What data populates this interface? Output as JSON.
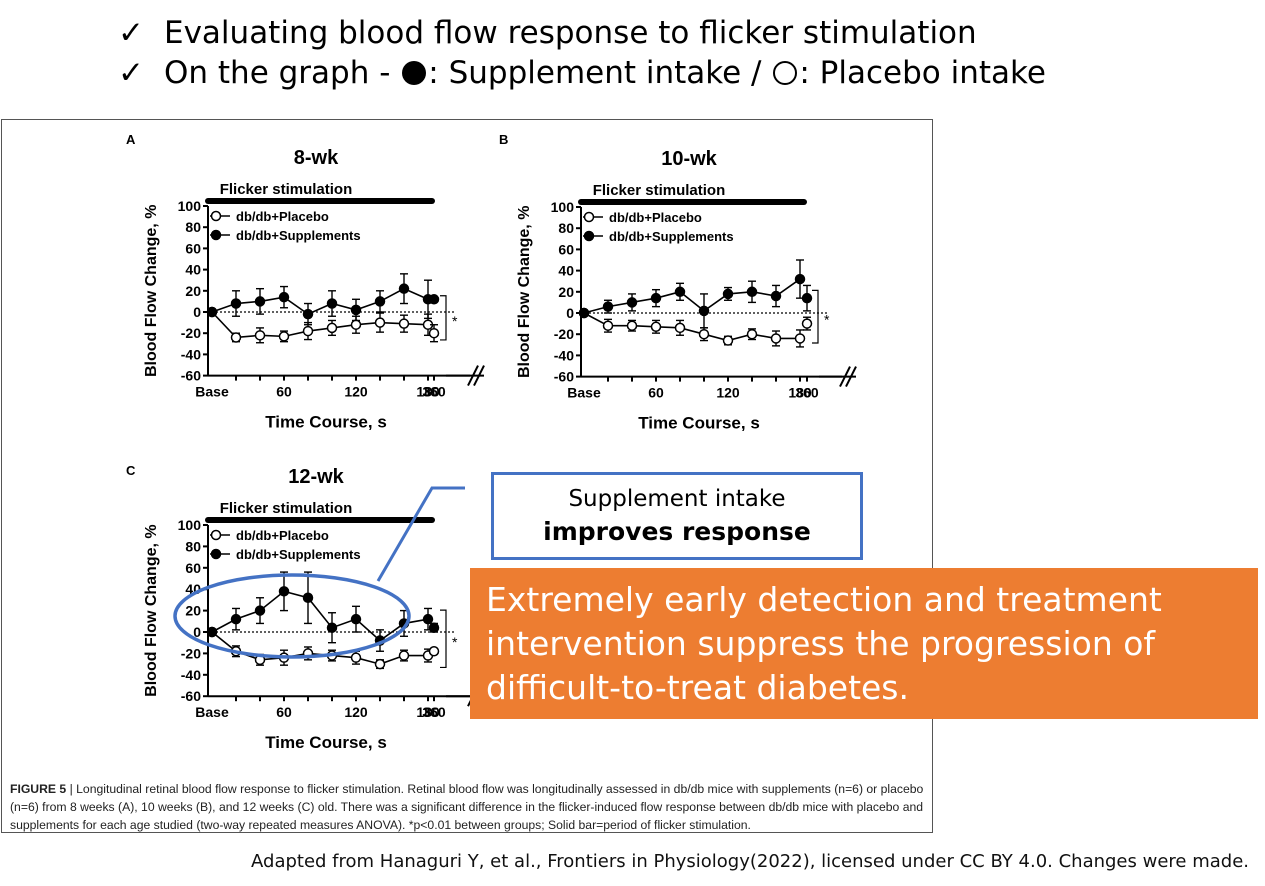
{
  "header": {
    "check_glyph": "✓",
    "bullet1": "Evaluating blood flow response to flicker stimulation",
    "bullet2_prefix": "On the graph - ",
    "bullet2_supp": ": Supplement intake / ",
    "bullet2_plac": ": Placebo intake"
  },
  "callout": {
    "line1": "Supplement intake",
    "line2": "improves response",
    "color": "#4472c4"
  },
  "conclusion": {
    "text": "Extremely early detection and treatment intervention suppress the progression of difficult-to-treat diabetes.",
    "background": "#ed7d31"
  },
  "footer": "Adapted from Hanaguri Y, et al., Frontiers in Physiology(2022), licensed under CC BY 4.0. Changes were made.",
  "caption": {
    "figure_label": "FIGURE 5",
    "text": " | Longitudinal retinal blood flow response to flicker stimulation. Retinal blood flow was longitudinally assessed in db/db mice with supplements (n=6) or placebo (n=6) from 8 weeks (A), 10 weeks (B), and 12 weeks (C) old. There was a significant difference in the flicker-induced flow response between db/db mice with placebo and supplements for each age studied (two-way repeated measures ANOVA). *p<0.01 between groups; Solid bar=period of flicker stimulation."
  },
  "chart_data": [
    {
      "type": "line",
      "panel": "A",
      "title": "8-wk",
      "bar_label": "Flicker stimulation",
      "xlabel": "Time Course, s",
      "ylabel": "Blood Flow Change, %",
      "ylim": [
        -60,
        100
      ],
      "yticks": [
        100,
        80,
        60,
        40,
        20,
        0,
        -20,
        -40,
        -60
      ],
      "xticks": [
        {
          "label": "Base",
          "x": 0
        },
        {
          "label": "60",
          "x": 60
        },
        {
          "label": "120",
          "x": 120
        },
        {
          "label": "180",
          "x": 180
        },
        {
          "label": "360",
          "x": 360
        }
      ],
      "significance": "*",
      "series": [
        {
          "name": "db/db+Placebo",
          "marker": "open",
          "x": [
            0,
            20,
            40,
            60,
            80,
            100,
            120,
            140,
            160,
            180,
            360
          ],
          "values": [
            0,
            -24,
            -22,
            -23,
            -18,
            -15,
            -12,
            -10,
            -11,
            -12,
            -20
          ],
          "errors": [
            0,
            4,
            7,
            5,
            8,
            7,
            8,
            9,
            8,
            10,
            8
          ]
        },
        {
          "name": "db/db+Supplements",
          "marker": "filled",
          "x": [
            0,
            20,
            40,
            60,
            80,
            100,
            120,
            140,
            160,
            180,
            360
          ],
          "values": [
            0,
            8,
            10,
            14,
            -2,
            8,
            2,
            10,
            22,
            12,
            12
          ],
          "errors": [
            0,
            12,
            12,
            10,
            10,
            12,
            10,
            10,
            14,
            18,
            0
          ]
        }
      ]
    },
    {
      "type": "line",
      "panel": "B",
      "title": "10-wk",
      "bar_label": "Flicker stimulation",
      "xlabel": "Time Course, s",
      "ylabel": "Blood Flow Change, %",
      "ylim": [
        -60,
        100
      ],
      "yticks": [
        100,
        80,
        60,
        40,
        20,
        0,
        -20,
        -40,
        -60
      ],
      "xticks": [
        {
          "label": "Base",
          "x": 0
        },
        {
          "label": "60",
          "x": 60
        },
        {
          "label": "120",
          "x": 120
        },
        {
          "label": "180",
          "x": 180
        },
        {
          "label": "360",
          "x": 360
        }
      ],
      "significance": "*",
      "series": [
        {
          "name": "db/db+Placebo",
          "marker": "open",
          "x": [
            0,
            20,
            40,
            60,
            80,
            100,
            120,
            140,
            160,
            180,
            360
          ],
          "values": [
            0,
            -12,
            -12,
            -13,
            -14,
            -20,
            -26,
            -20,
            -24,
            -24,
            -10
          ],
          "errors": [
            0,
            6,
            5,
            6,
            7,
            6,
            4,
            5,
            7,
            8,
            6
          ]
        },
        {
          "name": "db/db+Supplements",
          "marker": "filled",
          "x": [
            0,
            20,
            40,
            60,
            80,
            100,
            120,
            140,
            160,
            180,
            360
          ],
          "values": [
            0,
            6,
            10,
            14,
            20,
            2,
            18,
            20,
            16,
            32,
            14
          ],
          "errors": [
            0,
            6,
            8,
            8,
            8,
            16,
            6,
            10,
            10,
            18,
            12
          ]
        }
      ]
    },
    {
      "type": "line",
      "panel": "C",
      "title": "12-wk",
      "bar_label": "Flicker stimulation",
      "xlabel": "Time Course, s",
      "ylabel": "Blood Flow Change, %",
      "ylim": [
        -60,
        100
      ],
      "yticks": [
        100,
        80,
        60,
        40,
        20,
        0,
        -20,
        -40,
        -60
      ],
      "xticks": [
        {
          "label": "Base",
          "x": 0
        },
        {
          "label": "60",
          "x": 60
        },
        {
          "label": "120",
          "x": 120
        },
        {
          "label": "180",
          "x": 180
        },
        {
          "label": "360",
          "x": 360
        }
      ],
      "significance": "*",
      "series": [
        {
          "name": "db/db+Placebo",
          "marker": "open",
          "x": [
            0,
            20,
            40,
            60,
            80,
            100,
            120,
            140,
            160,
            180,
            360
          ],
          "values": [
            0,
            -18,
            -26,
            -24,
            -20,
            -22,
            -24,
            -30,
            -22,
            -22,
            -18
          ],
          "errors": [
            0,
            5,
            5,
            7,
            6,
            5,
            6,
            4,
            5,
            6,
            0
          ]
        },
        {
          "name": "db/db+Supplements",
          "marker": "filled",
          "x": [
            0,
            20,
            40,
            60,
            80,
            100,
            120,
            140,
            160,
            180,
            360
          ],
          "values": [
            0,
            12,
            20,
            38,
            32,
            4,
            12,
            -8,
            8,
            12,
            4
          ],
          "errors": [
            0,
            10,
            12,
            18,
            24,
            14,
            12,
            10,
            12,
            10,
            4
          ]
        }
      ]
    }
  ]
}
